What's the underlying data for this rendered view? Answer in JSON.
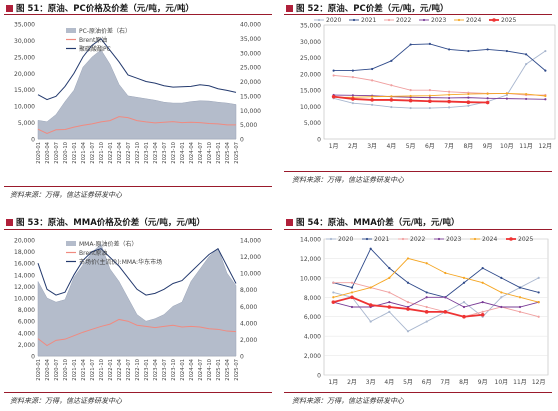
{
  "panels": [
    {
      "title": "图 51：原油、PC价格及价差（元/吨，元/吨）",
      "source": "资料来源：万得，信达证券研发中心"
    },
    {
      "title": "图 52：原油、PC价差（元/吨，元/吨）",
      "source": "资料来源：万得，信达证券研发中心"
    },
    {
      "title": "图 53：原油、MMA价格及价差（元/吨，元/吨）",
      "source": "资料来源：万得，信达证券研发中心"
    },
    {
      "title": "图 54：原油、MMA价差（元/吨，元/吨）",
      "source": "资料来源：万得，信达证券研发中心"
    }
  ],
  "colors": {
    "accent": "#9a1a2c",
    "area": "#b4bccb",
    "brent": "#f08a80",
    "product": "#243a6e"
  },
  "chart_data": [
    {
      "type": "area",
      "left_ticks": [
        "0",
        "5,000",
        "10,000",
        "15,000",
        "20,000",
        "25,000",
        "30,000",
        "35,000"
      ],
      "left_ylim": [
        0,
        35000
      ],
      "right_ticks": [
        "0",
        "5,000",
        "10,000",
        "15,000",
        "20,000",
        "25,000",
        "30,000",
        "35,000",
        "40,000"
      ],
      "right_ylim": [
        0,
        40000
      ],
      "x_ticks": [
        "2020-01",
        "2020-04",
        "2020-07",
        "2020-10",
        "2021-01",
        "2021-04",
        "2021-07",
        "2021-10",
        "2022-01",
        "2022-04",
        "2022-07",
        "2022-10",
        "2023-01",
        "2023-04",
        "2023-07",
        "2023-10",
        "2024-01",
        "2024-04",
        "2024-07",
        "2024-10",
        "2025-01",
        "2025-04",
        "2025-07"
      ],
      "legend": [
        "PC-原油价差（右）",
        "Brent原油",
        "聚碳酸酯PC"
      ],
      "series": [
        {
          "name": "PC-原油价差（右）",
          "axis": "right",
          "values": [
            6500,
            6000,
            8500,
            13000,
            17000,
            25000,
            28500,
            31000,
            26000,
            19000,
            15000,
            14500,
            14000,
            13500,
            12800,
            12500,
            12500,
            13000,
            13300,
            13200,
            12800,
            12500,
            12000
          ]
        },
        {
          "name": "Brent原油",
          "axis": "left",
          "values": [
            3000,
            1700,
            2800,
            2900,
            3600,
            4200,
            4600,
            5200,
            5600,
            6800,
            6500,
            5600,
            5200,
            4900,
            5100,
            5300,
            5000,
            5100,
            5000,
            4700,
            4600,
            4300,
            4300
          ]
        },
        {
          "name": "聚碳酸酯PC",
          "axis": "left",
          "values": [
            13500,
            12000,
            13000,
            16000,
            20000,
            25000,
            28500,
            30500,
            27000,
            23500,
            19500,
            18500,
            17500,
            17000,
            16200,
            15800,
            15900,
            16000,
            16500,
            16200,
            15300,
            14800,
            14200
          ]
        }
      ]
    },
    {
      "type": "line",
      "x_ticks": [
        "1月",
        "2月",
        "3月",
        "4月",
        "5月",
        "6月",
        "7月",
        "8月",
        "9月",
        "10月",
        "11月",
        "12月"
      ],
      "ylim": [
        0,
        35000
      ],
      "y_ticks": [
        "0",
        "5,000",
        "10,000",
        "15,000",
        "20,000",
        "25,000",
        "30,000",
        "35,000"
      ],
      "series": [
        {
          "name": "2020",
          "color": "#a9b7cf",
          "values": [
            12500,
            11000,
            10500,
            9800,
            9500,
            9500,
            9700,
            10200,
            11500,
            13500,
            23000,
            27000
          ]
        },
        {
          "name": "2021",
          "color": "#2f4a8a",
          "values": [
            21000,
            21000,
            21500,
            24000,
            29000,
            29200,
            27500,
            27000,
            27500,
            27000,
            26000,
            21000
          ]
        },
        {
          "name": "2022",
          "color": "#f0a0a0",
          "values": [
            19500,
            19000,
            18000,
            16500,
            15000,
            15000,
            14500,
            14200,
            14000,
            14000,
            13500,
            13500
          ]
        },
        {
          "name": "2023",
          "color": "#7a3c96",
          "values": [
            13500,
            13400,
            13300,
            13000,
            12800,
            12700,
            12600,
            12700,
            12500,
            12400,
            12300,
            12200
          ]
        },
        {
          "name": "2024",
          "color": "#f5a623",
          "values": [
            12800,
            12800,
            13000,
            13100,
            13200,
            13300,
            13600,
            13800,
            13900,
            14000,
            13800,
            13200
          ]
        },
        {
          "name": "2025",
          "color": "#ee3333",
          "values": [
            13000,
            12300,
            12000,
            12000,
            11800,
            11600,
            11500,
            11300,
            11200
          ]
        }
      ]
    },
    {
      "type": "area",
      "left_ticks": [
        "0",
        "2,000",
        "4,000",
        "6,000",
        "8,000",
        "10,000",
        "12,000",
        "14,000",
        "16,000",
        "18,000",
        "20,000"
      ],
      "left_ylim": [
        0,
        20000
      ],
      "right_ticks": [
        "0",
        "2,000",
        "4,000",
        "6,000",
        "8,000",
        "10,000",
        "12,000",
        "14,000"
      ],
      "right_ylim": [
        0,
        14000
      ],
      "x_ticks": [
        "2020-01",
        "2020-04",
        "2020-07",
        "2020-10",
        "2021-01",
        "2021-04",
        "2021-07",
        "2021-10",
        "2022-01",
        "2022-04",
        "2022-07",
        "2022-10",
        "2023-01",
        "2023-04",
        "2023-07",
        "2023-10",
        "2024-01",
        "2024-04",
        "2024-07",
        "2024-10",
        "2025-01",
        "2025-04",
        "2025-07"
      ],
      "legend": [
        "MMA-原油价差（右）",
        "Brent原油",
        "市场价(主流价):MMA:华东市场"
      ],
      "series": [
        {
          "name": "MMA-原油价差（右）",
          "axis": "right",
          "values": [
            9000,
            7000,
            6500,
            6800,
            9500,
            11000,
            12500,
            13500,
            10500,
            9000,
            7000,
            5000,
            4200,
            4500,
            5000,
            6000,
            6500,
            9000,
            10500,
            12000,
            13000,
            10000,
            8500
          ]
        },
        {
          "name": "Brent原油",
          "axis": "left",
          "values": [
            3000,
            1800,
            2700,
            2900,
            3500,
            4100,
            4600,
            5100,
            5500,
            6300,
            6000,
            5300,
            5100,
            4900,
            5100,
            5300,
            5000,
            5100,
            5000,
            4700,
            4600,
            4300,
            4200
          ]
        },
        {
          "name": "市场价(主流价):MMA:华东市场",
          "axis": "left",
          "values": [
            16000,
            11500,
            10500,
            11000,
            14000,
            16500,
            18000,
            18500,
            17000,
            15500,
            13500,
            11500,
            10500,
            10800,
            11500,
            12500,
            13000,
            14500,
            16000,
            17500,
            18500,
            15500,
            12500
          ]
        }
      ]
    },
    {
      "type": "line",
      "x_ticks": [
        "1月",
        "2月",
        "3月",
        "4月",
        "5月",
        "6月",
        "7月",
        "8月",
        "9月",
        "10月",
        "11月",
        "12月"
      ],
      "ylim": [
        0,
        14000
      ],
      "y_ticks": [
        "0",
        "2,000",
        "4,000",
        "6,000",
        "8,000",
        "10,000",
        "12,000",
        "14,000"
      ],
      "series": [
        {
          "name": "2020",
          "color": "#a9b7cf",
          "values": [
            8500,
            8000,
            5500,
            6500,
            4500,
            5500,
            6500,
            7500,
            6000,
            8000,
            9000,
            10000
          ]
        },
        {
          "name": "2021",
          "color": "#2f4a8a",
          "values": [
            9500,
            9000,
            13000,
            11000,
            9500,
            8500,
            8000,
            9500,
            11000,
            10000,
            9000,
            8500
          ]
        },
        {
          "name": "2022",
          "color": "#f0a0a0",
          "values": [
            9500,
            9500,
            9000,
            8500,
            7500,
            7000,
            6500,
            6000,
            6500,
            7000,
            6500,
            6000
          ]
        },
        {
          "name": "2023",
          "color": "#7a3c96",
          "values": [
            7500,
            7000,
            7000,
            7500,
            7000,
            8000,
            8000,
            7000,
            7500,
            7000,
            7000,
            7500
          ]
        },
        {
          "name": "2024",
          "color": "#f5a623",
          "values": [
            8000,
            8500,
            9000,
            10000,
            12000,
            11500,
            10500,
            10000,
            9500,
            8500,
            8000,
            7500
          ]
        },
        {
          "name": "2025",
          "color": "#ee3333",
          "values": [
            7500,
            8000,
            7200,
            7000,
            6800,
            6500,
            6500,
            6000,
            6200
          ]
        }
      ]
    }
  ]
}
